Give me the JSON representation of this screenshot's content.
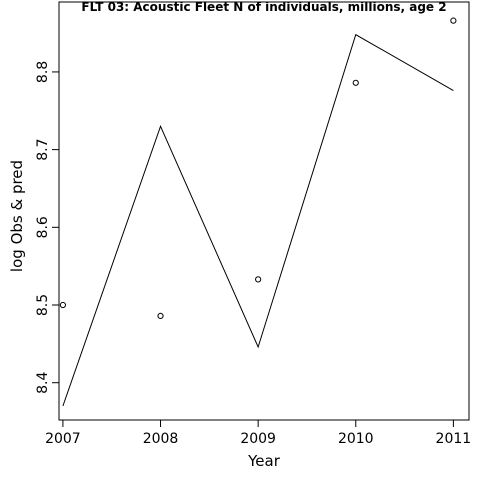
{
  "chart_data": {
    "type": "line",
    "title": "FLT 03: Acoustic Fleet  N of individuals, millions, age 2",
    "xlabel": "Year",
    "ylabel": "log Obs & pred",
    "x": [
      2007,
      2008,
      2009,
      2010,
      2011
    ],
    "xticks": [
      "2007",
      "2008",
      "2009",
      "2010",
      "2011"
    ],
    "yticks": [
      "8.4",
      "8.5",
      "8.6",
      "8.7",
      "8.8"
    ],
    "xlim": [
      2006.96,
      2011.16
    ],
    "ylim": [
      8.352,
      8.89
    ],
    "series": [
      {
        "style": "line",
        "values": [
          8.37,
          8.73,
          8.446,
          8.848,
          8.776
        ]
      },
      {
        "style": "points",
        "values": [
          8.5,
          8.486,
          8.533,
          8.786,
          8.866
        ]
      }
    ],
    "grid": false,
    "legend": "none"
  }
}
